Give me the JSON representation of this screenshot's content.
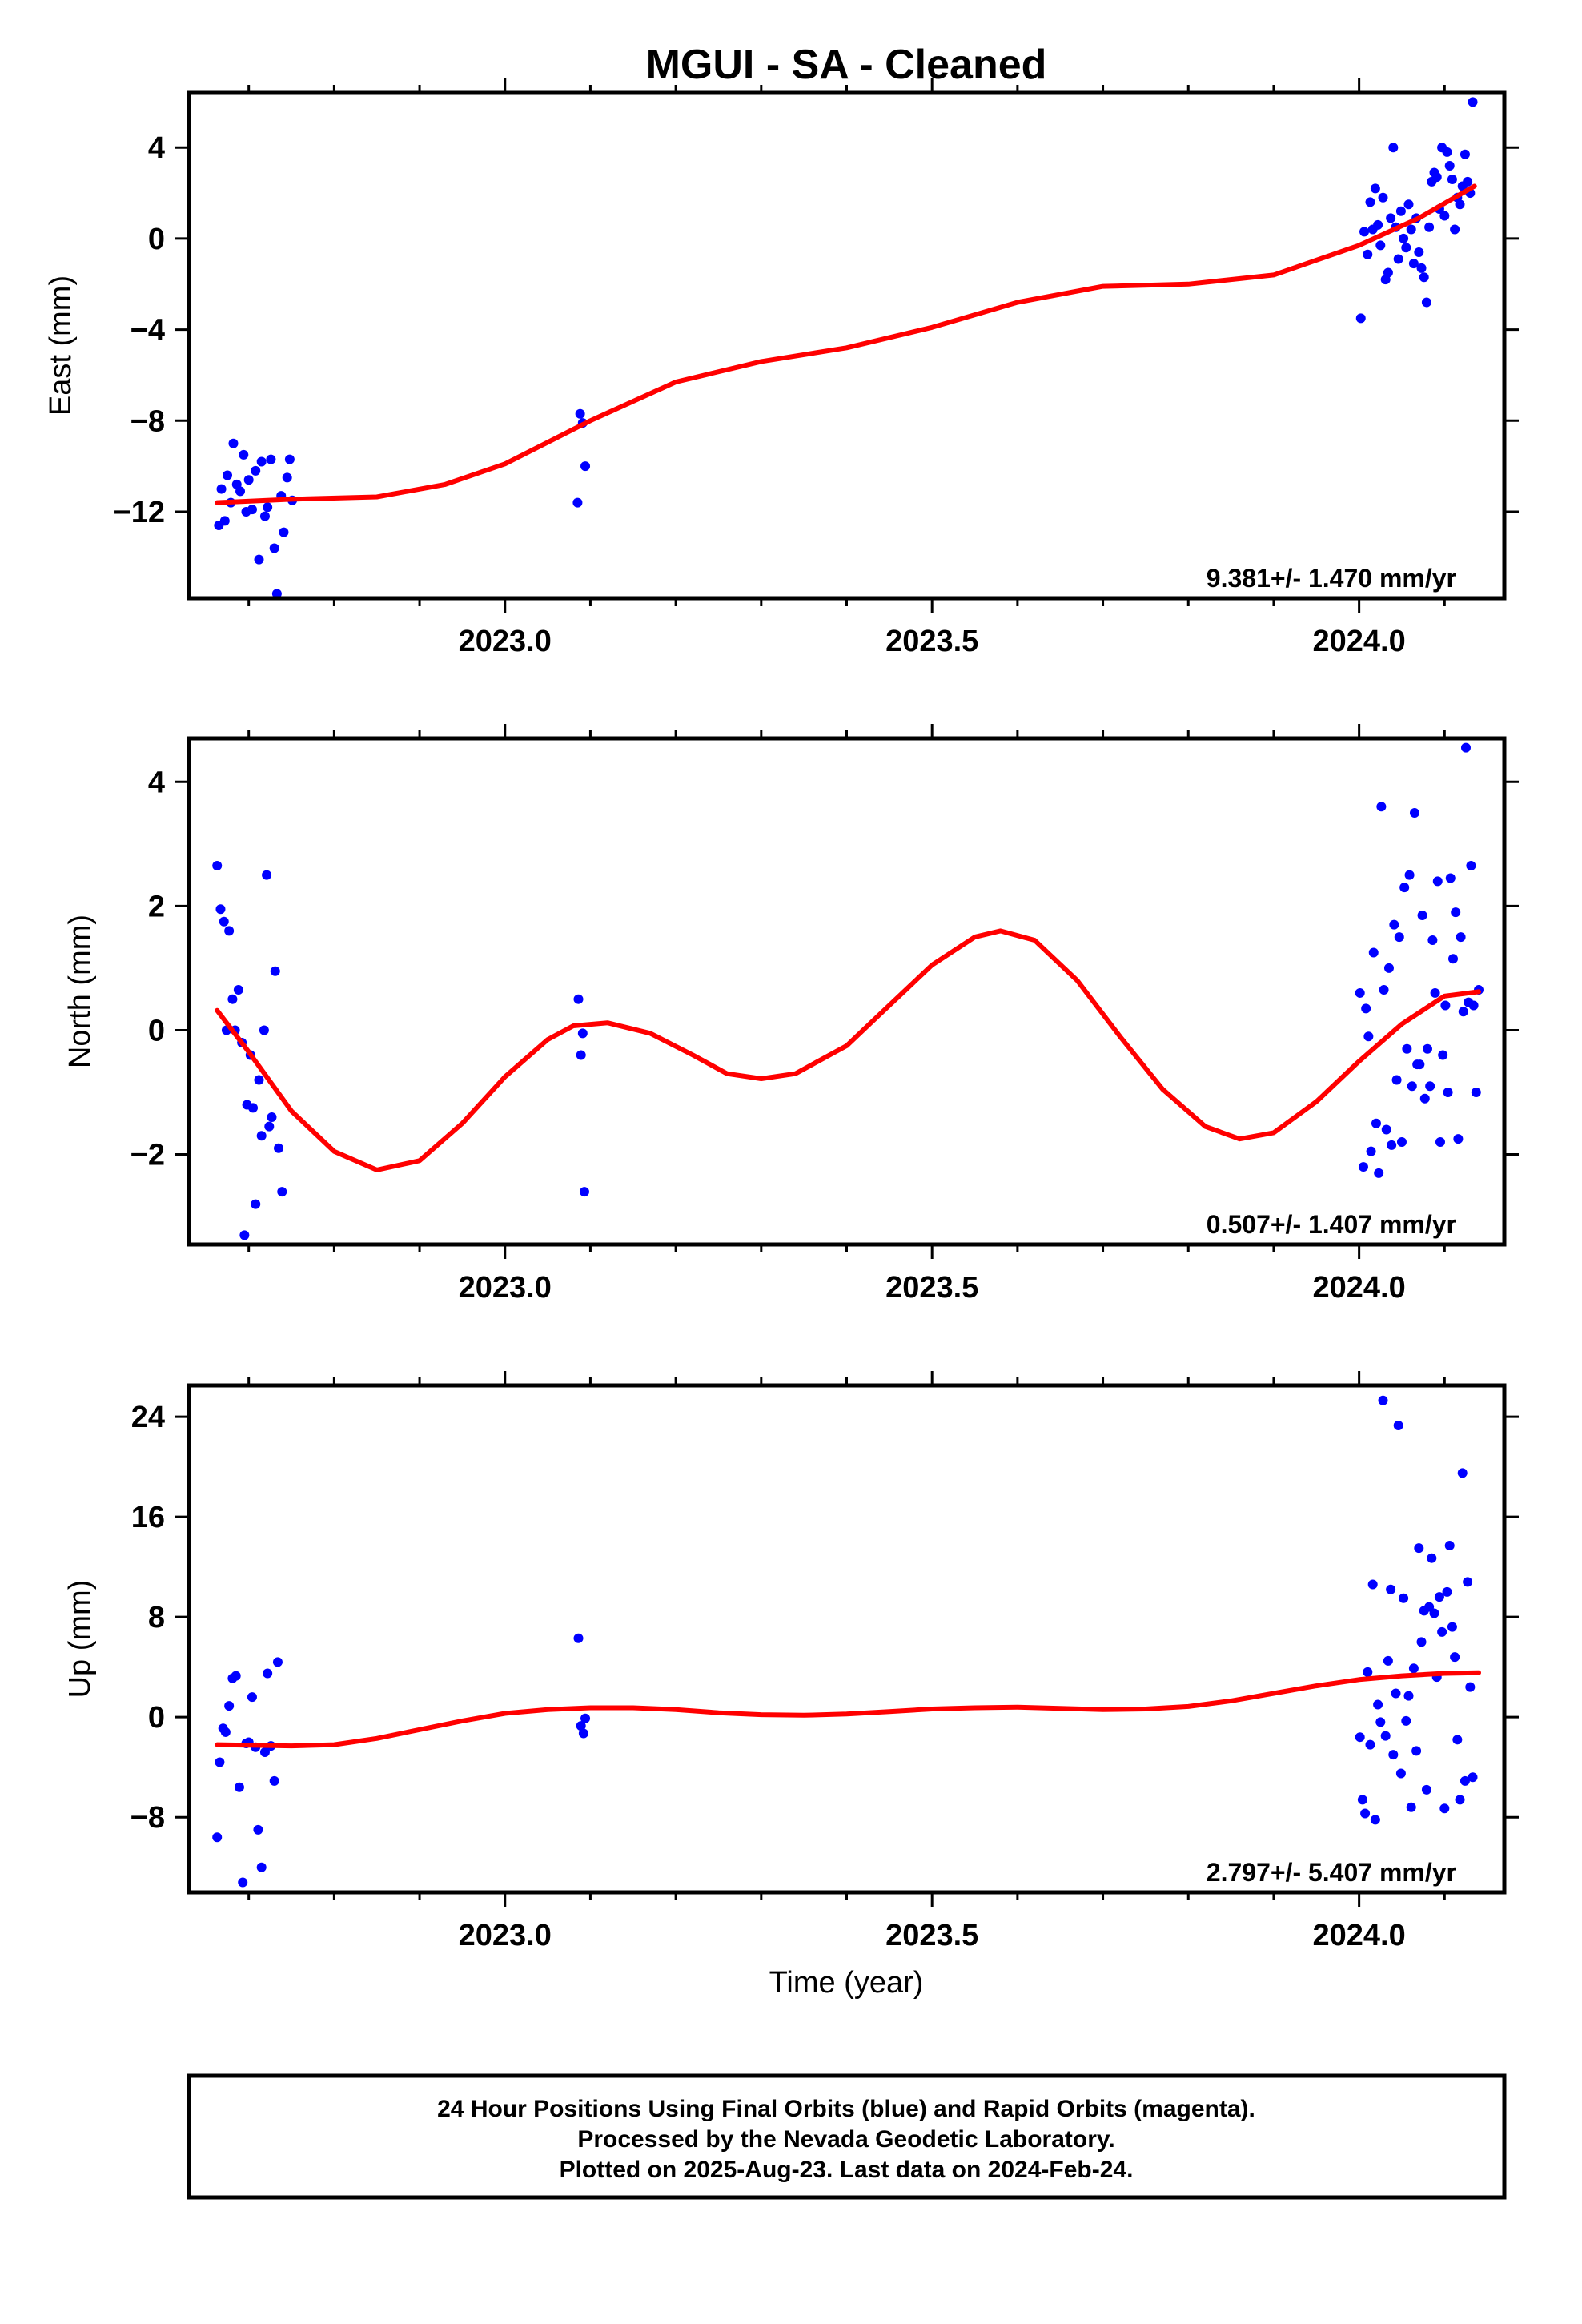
{
  "title": "MGUI  - SA - Cleaned",
  "colors": {
    "final_orbit_points": "#0000ff",
    "fit_line": "#ff0000",
    "axes": "#000000"
  },
  "footer": {
    "line1": "24 Hour Positions Using Final Orbits (blue) and Rapid Orbits (magenta).",
    "line2": "Processed by the Nevada Geodetic Laboratory.",
    "line3": "Plotted on 2025-Aug-23. Last data on 2024-Feb-24."
  },
  "xlabel": "Time (year)",
  "chart_data": [
    {
      "type": "scatter",
      "id": "east",
      "ylabel": "East (mm)",
      "xlim": [
        2022.63,
        2024.17
      ],
      "ylim": [
        -15.8,
        6.4
      ],
      "x_ticks": [
        2023.0,
        2023.5,
        2024.0
      ],
      "x_tick_labels": [
        "2023.0",
        "2023.5",
        "2024.0"
      ],
      "y_ticks": [
        -12,
        -8,
        -4,
        0,
        4
      ],
      "y_tick_labels": [
        "−12",
        "−8",
        "−4",
        "0",
        "4"
      ],
      "rate_label": "9.381+/- 1.470 mm/yr",
      "points": [
        [
          2022.665,
          -12.6
        ],
        [
          2022.668,
          -11.0
        ],
        [
          2022.672,
          -12.4
        ],
        [
          2022.675,
          -10.4
        ],
        [
          2022.679,
          -11.6
        ],
        [
          2022.682,
          -9.0
        ],
        [
          2022.686,
          -10.8
        ],
        [
          2022.69,
          -11.1
        ],
        [
          2022.694,
          -9.5
        ],
        [
          2022.697,
          -12.0
        ],
        [
          2022.7,
          -10.6
        ],
        [
          2022.704,
          -11.9
        ],
        [
          2022.708,
          -10.2
        ],
        [
          2022.712,
          -14.1
        ],
        [
          2022.715,
          -9.8
        ],
        [
          2022.719,
          -12.2
        ],
        [
          2022.722,
          -11.8
        ],
        [
          2022.726,
          -9.7
        ],
        [
          2022.73,
          -13.6
        ],
        [
          2022.733,
          -15.6
        ],
        [
          2022.738,
          -11.3
        ],
        [
          2022.741,
          -12.9
        ],
        [
          2022.745,
          -10.5
        ],
        [
          2022.748,
          -9.7
        ],
        [
          2022.751,
          -11.5
        ],
        [
          2023.085,
          -11.6
        ],
        [
          2023.088,
          -7.7
        ],
        [
          2023.091,
          -8.1
        ],
        [
          2023.094,
          -10.0
        ],
        [
          2024.002,
          -3.5
        ],
        [
          2024.006,
          0.3
        ],
        [
          2024.01,
          -0.7
        ],
        [
          2024.013,
          1.6
        ],
        [
          2024.016,
          0.4
        ],
        [
          2024.019,
          2.2
        ],
        [
          2024.022,
          0.6
        ],
        [
          2024.025,
          -0.3
        ],
        [
          2024.028,
          1.8
        ],
        [
          2024.031,
          -1.8
        ],
        [
          2024.034,
          -1.5
        ],
        [
          2024.037,
          0.9
        ],
        [
          2024.04,
          4.0
        ],
        [
          2024.043,
          0.5
        ],
        [
          2024.046,
          -0.9
        ],
        [
          2024.049,
          1.2
        ],
        [
          2024.052,
          0.0
        ],
        [
          2024.055,
          -0.4
        ],
        [
          2024.058,
          1.5
        ],
        [
          2024.061,
          0.4
        ],
        [
          2024.064,
          -1.1
        ],
        [
          2024.067,
          0.9
        ],
        [
          2024.07,
          -0.6
        ],
        [
          2024.073,
          -1.3
        ],
        [
          2024.076,
          -1.7
        ],
        [
          2024.079,
          -2.8
        ],
        [
          2024.082,
          0.5
        ],
        [
          2024.085,
          2.5
        ],
        [
          2024.088,
          2.9
        ],
        [
          2024.091,
          2.7
        ],
        [
          2024.094,
          1.3
        ],
        [
          2024.097,
          4.0
        ],
        [
          2024.1,
          1.0
        ],
        [
          2024.103,
          3.8
        ],
        [
          2024.106,
          3.2
        ],
        [
          2024.109,
          2.6
        ],
        [
          2024.112,
          0.4
        ],
        [
          2024.115,
          1.8
        ],
        [
          2024.118,
          1.5
        ],
        [
          2024.121,
          2.3
        ],
        [
          2024.124,
          3.7
        ],
        [
          2024.127,
          2.5
        ],
        [
          2024.13,
          2.0
        ],
        [
          2024.133,
          6.0
        ]
      ],
      "fit": [
        [
          2022.663,
          -11.6
        ],
        [
          2022.75,
          -11.45
        ],
        [
          2022.85,
          -11.35
        ],
        [
          2022.93,
          -10.8
        ],
        [
          2023.0,
          -9.9
        ],
        [
          2023.1,
          -8.0
        ],
        [
          2023.2,
          -6.3
        ],
        [
          2023.3,
          -5.4
        ],
        [
          2023.4,
          -4.8
        ],
        [
          2023.5,
          -3.9
        ],
        [
          2023.6,
          -2.8
        ],
        [
          2023.7,
          -2.1
        ],
        [
          2023.8,
          -2.0
        ],
        [
          2023.9,
          -1.6
        ],
        [
          2024.0,
          -0.3
        ],
        [
          2024.07,
          0.9
        ],
        [
          2024.135,
          2.3
        ]
      ]
    },
    {
      "type": "scatter",
      "id": "north",
      "ylabel": "North (mm)",
      "xlim": [
        2022.63,
        2024.17
      ],
      "ylim": [
        -3.45,
        4.7
      ],
      "x_ticks": [
        2023.0,
        2023.5,
        2024.0
      ],
      "x_tick_labels": [
        "2023.0",
        "2023.5",
        "2024.0"
      ],
      "y_ticks": [
        -2,
        0,
        2,
        4
      ],
      "y_tick_labels": [
        "−2",
        "0",
        "2",
        "4"
      ],
      "rate_label": "0.507+/- 1.407 mm/yr",
      "points": [
        [
          2022.663,
          2.65
        ],
        [
          2022.667,
          1.95
        ],
        [
          2022.671,
          1.75
        ],
        [
          2022.674,
          0.0
        ],
        [
          2022.677,
          1.6
        ],
        [
          2022.681,
          0.5
        ],
        [
          2022.684,
          0.0
        ],
        [
          2022.688,
          0.65
        ],
        [
          2022.692,
          -0.2
        ],
        [
          2022.695,
          -3.3
        ],
        [
          2022.698,
          -1.2
        ],
        [
          2022.702,
          -0.4
        ],
        [
          2022.705,
          -1.25
        ],
        [
          2022.708,
          -2.8
        ],
        [
          2022.712,
          -0.8
        ],
        [
          2022.715,
          -1.7
        ],
        [
          2022.718,
          0.0
        ],
        [
          2022.721,
          2.5
        ],
        [
          2022.724,
          -1.55
        ],
        [
          2022.727,
          -1.4
        ],
        [
          2022.731,
          0.95
        ],
        [
          2022.735,
          -1.9
        ],
        [
          2022.739,
          -2.6
        ],
        [
          2023.086,
          0.5
        ],
        [
          2023.089,
          -0.4
        ],
        [
          2023.091,
          -0.05
        ],
        [
          2023.093,
          -2.6
        ],
        [
          2024.001,
          0.6
        ],
        [
          2024.005,
          -2.2
        ],
        [
          2024.008,
          0.35
        ],
        [
          2024.011,
          -0.1
        ],
        [
          2024.014,
          -1.95
        ],
        [
          2024.017,
          1.25
        ],
        [
          2024.02,
          -1.5
        ],
        [
          2024.023,
          -2.3
        ],
        [
          2024.026,
          3.6
        ],
        [
          2024.029,
          0.65
        ],
        [
          2024.032,
          -1.6
        ],
        [
          2024.035,
          1.0
        ],
        [
          2024.038,
          -1.85
        ],
        [
          2024.041,
          1.7
        ],
        [
          2024.044,
          -0.8
        ],
        [
          2024.047,
          1.5
        ],
        [
          2024.05,
          -1.8
        ],
        [
          2024.053,
          2.3
        ],
        [
          2024.056,
          -0.3
        ],
        [
          2024.059,
          2.5
        ],
        [
          2024.062,
          -0.9
        ],
        [
          2024.065,
          3.5
        ],
        [
          2024.068,
          -0.55
        ],
        [
          2024.071,
          -0.55
        ],
        [
          2024.074,
          1.85
        ],
        [
          2024.077,
          -1.1
        ],
        [
          2024.08,
          -0.3
        ],
        [
          2024.083,
          -0.9
        ],
        [
          2024.086,
          1.45
        ],
        [
          2024.089,
          0.6
        ],
        [
          2024.092,
          2.4
        ],
        [
          2024.095,
          -1.8
        ],
        [
          2024.098,
          -0.4
        ],
        [
          2024.101,
          0.4
        ],
        [
          2024.104,
          -1.0
        ],
        [
          2024.107,
          2.45
        ],
        [
          2024.11,
          1.15
        ],
        [
          2024.113,
          1.9
        ],
        [
          2024.116,
          -1.75
        ],
        [
          2024.119,
          1.5
        ],
        [
          2024.122,
          0.3
        ],
        [
          2024.125,
          4.55
        ],
        [
          2024.128,
          0.45
        ],
        [
          2024.131,
          2.65
        ],
        [
          2024.134,
          0.4
        ],
        [
          2024.137,
          -1.0
        ],
        [
          2024.14,
          0.65
        ]
      ],
      "fit": [
        [
          2022.663,
          0.32
        ],
        [
          2022.7,
          -0.35
        ],
        [
          2022.75,
          -1.3
        ],
        [
          2022.8,
          -1.95
        ],
        [
          2022.85,
          -2.25
        ],
        [
          2022.9,
          -2.1
        ],
        [
          2022.95,
          -1.5
        ],
        [
          2023.0,
          -0.75
        ],
        [
          2023.05,
          -0.15
        ],
        [
          2023.08,
          0.07
        ],
        [
          2023.12,
          0.12
        ],
        [
          2023.17,
          -0.05
        ],
        [
          2023.22,
          -0.4
        ],
        [
          2023.26,
          -0.7
        ],
        [
          2023.3,
          -0.78
        ],
        [
          2023.34,
          -0.7
        ],
        [
          2023.4,
          -0.25
        ],
        [
          2023.45,
          0.4
        ],
        [
          2023.5,
          1.05
        ],
        [
          2023.55,
          1.5
        ],
        [
          2023.58,
          1.6
        ],
        [
          2023.62,
          1.45
        ],
        [
          2023.67,
          0.8
        ],
        [
          2023.72,
          -0.1
        ],
        [
          2023.77,
          -0.95
        ],
        [
          2023.82,
          -1.55
        ],
        [
          2023.86,
          -1.75
        ],
        [
          2023.9,
          -1.65
        ],
        [
          2023.95,
          -1.15
        ],
        [
          2024.0,
          -0.5
        ],
        [
          2024.05,
          0.1
        ],
        [
          2024.1,
          0.55
        ],
        [
          2024.14,
          0.62
        ]
      ]
    },
    {
      "type": "scatter",
      "id": "up",
      "ylabel": "Up (mm)",
      "xlim": [
        2022.63,
        2024.17
      ],
      "ylim": [
        -14.0,
        26.5
      ],
      "x_ticks": [
        2023.0,
        2023.5,
        2024.0
      ],
      "x_tick_labels": [
        "2023.0",
        "2023.5",
        "2024.0"
      ],
      "y_ticks": [
        -8,
        0,
        8,
        16,
        24
      ],
      "y_tick_labels": [
        "−8",
        "0",
        "8",
        "16",
        "24"
      ],
      "rate_label": "2.797+/- 5.407 mm/yr",
      "points": [
        [
          2022.663,
          -9.6
        ],
        [
          2022.666,
          -3.6
        ],
        [
          2022.67,
          -0.9
        ],
        [
          2022.673,
          -1.2
        ],
        [
          2022.677,
          0.9
        ],
        [
          2022.681,
          3.1
        ],
        [
          2022.685,
          3.3
        ],
        [
          2022.689,
          -5.6
        ],
        [
          2022.693,
          -13.2
        ],
        [
          2022.697,
          -2.1
        ],
        [
          2022.7,
          -2.0
        ],
        [
          2022.704,
          1.6
        ],
        [
          2022.708,
          -2.4
        ],
        [
          2022.711,
          -9.0
        ],
        [
          2022.715,
          -12.0
        ],
        [
          2022.719,
          -2.8
        ],
        [
          2022.722,
          3.5
        ],
        [
          2022.726,
          -2.3
        ],
        [
          2022.73,
          -5.1
        ],
        [
          2022.734,
          4.4
        ],
        [
          2023.086,
          6.3
        ],
        [
          2023.089,
          -0.7
        ],
        [
          2023.092,
          -1.3
        ],
        [
          2023.094,
          -0.1
        ],
        [
          2024.001,
          -1.6
        ],
        [
          2024.004,
          -6.6
        ],
        [
          2024.007,
          -7.7
        ],
        [
          2024.01,
          3.6
        ],
        [
          2024.013,
          -2.2
        ],
        [
          2024.016,
          10.6
        ],
        [
          2024.019,
          -8.2
        ],
        [
          2024.022,
          1.0
        ],
        [
          2024.025,
          -0.4
        ],
        [
          2024.028,
          25.3
        ],
        [
          2024.031,
          -1.5
        ],
        [
          2024.034,
          4.5
        ],
        [
          2024.037,
          10.2
        ],
        [
          2024.04,
          -3.0
        ],
        [
          2024.043,
          1.9
        ],
        [
          2024.046,
          23.3
        ],
        [
          2024.049,
          -4.5
        ],
        [
          2024.052,
          9.5
        ],
        [
          2024.055,
          -0.3
        ],
        [
          2024.058,
          1.7
        ],
        [
          2024.061,
          -7.2
        ],
        [
          2024.064,
          3.9
        ],
        [
          2024.067,
          -2.7
        ],
        [
          2024.07,
          13.5
        ],
        [
          2024.073,
          6.0
        ],
        [
          2024.076,
          8.5
        ],
        [
          2024.079,
          -5.8
        ],
        [
          2024.082,
          8.8
        ],
        [
          2024.085,
          12.7
        ],
        [
          2024.088,
          8.3
        ],
        [
          2024.091,
          3.2
        ],
        [
          2024.094,
          9.6
        ],
        [
          2024.097,
          6.8
        ],
        [
          2024.1,
          -7.3
        ],
        [
          2024.103,
          10.0
        ],
        [
          2024.106,
          13.7
        ],
        [
          2024.109,
          7.2
        ],
        [
          2024.112,
          4.8
        ],
        [
          2024.115,
          -1.8
        ],
        [
          2024.118,
          -6.6
        ],
        [
          2024.121,
          19.5
        ],
        [
          2024.124,
          -5.1
        ],
        [
          2024.127,
          10.8
        ],
        [
          2024.13,
          2.4
        ],
        [
          2024.133,
          -4.8
        ]
      ],
      "fit": [
        [
          2022.663,
          -2.2
        ],
        [
          2022.75,
          -2.3
        ],
        [
          2022.8,
          -2.2
        ],
        [
          2022.85,
          -1.7
        ],
        [
          2022.9,
          -1.0
        ],
        [
          2022.95,
          -0.3
        ],
        [
          2023.0,
          0.3
        ],
        [
          2023.05,
          0.6
        ],
        [
          2023.1,
          0.75
        ],
        [
          2023.15,
          0.75
        ],
        [
          2023.2,
          0.6
        ],
        [
          2023.25,
          0.35
        ],
        [
          2023.3,
          0.2
        ],
        [
          2023.35,
          0.15
        ],
        [
          2023.4,
          0.25
        ],
        [
          2023.45,
          0.45
        ],
        [
          2023.5,
          0.65
        ],
        [
          2023.55,
          0.75
        ],
        [
          2023.6,
          0.8
        ],
        [
          2023.65,
          0.7
        ],
        [
          2023.7,
          0.6
        ],
        [
          2023.75,
          0.65
        ],
        [
          2023.8,
          0.85
        ],
        [
          2023.85,
          1.3
        ],
        [
          2023.9,
          1.9
        ],
        [
          2023.95,
          2.5
        ],
        [
          2024.0,
          3.0
        ],
        [
          2024.05,
          3.3
        ],
        [
          2024.1,
          3.5
        ],
        [
          2024.14,
          3.55
        ]
      ]
    }
  ]
}
